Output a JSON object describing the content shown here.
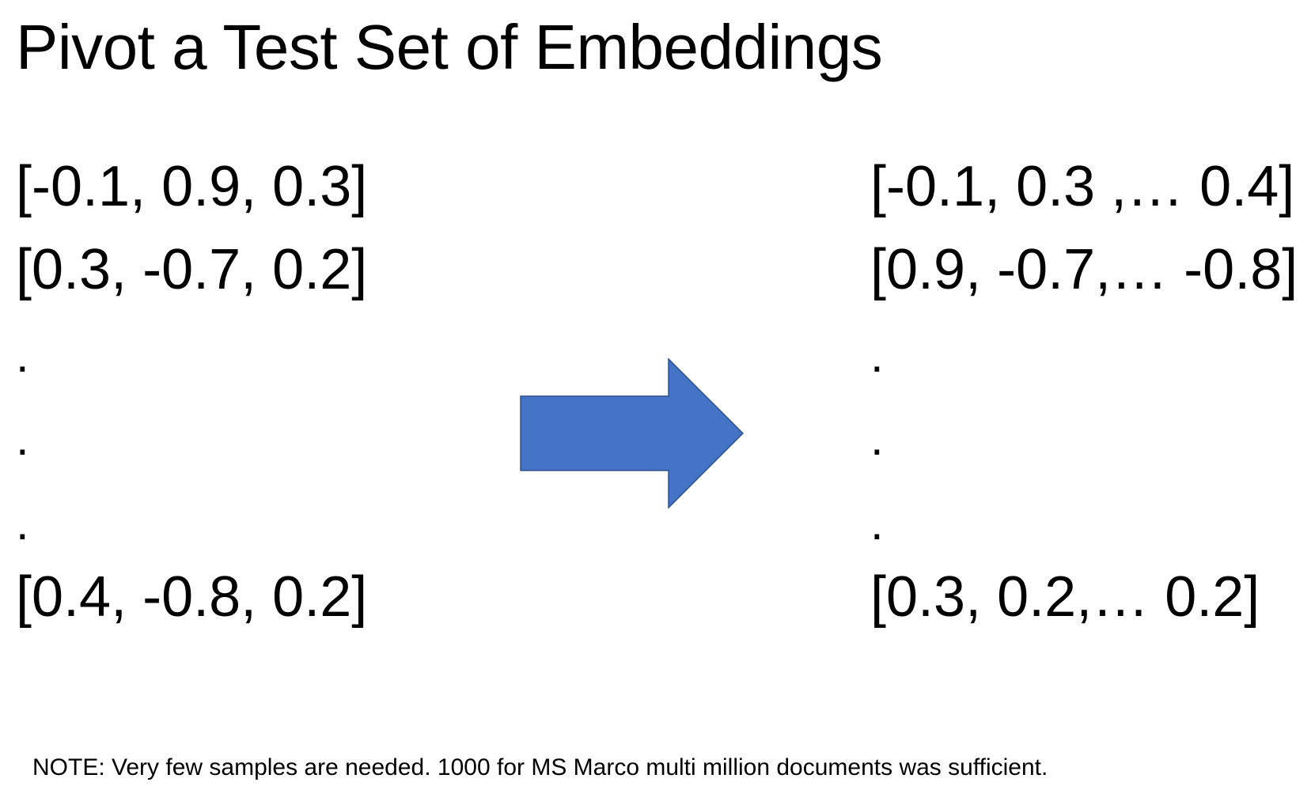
{
  "slide": {
    "title": "Pivot a Test Set of Embeddings",
    "left_list": {
      "rows": [
        "[-0.1, 0.9, 0.3]",
        "[0.3, -0.7, 0.2]",
        ".",
        ".",
        ".",
        "[0.4, -0.8, 0.2]"
      ]
    },
    "right_list": {
      "rows": [
        "[-0.1, 0.3 ,… 0.4]",
        "[0.9, -0.7,… -0.8]",
        ".",
        ".",
        ".",
        "[0.3, 0.2,… 0.2]"
      ]
    },
    "note": "NOTE: Very few samples are needed.  1000 for MS Marco multi million documents was sufficient.",
    "colors": {
      "arrow_fill": "#4472C4",
      "arrow_stroke": "#2F528F",
      "text": "#000000"
    }
  }
}
